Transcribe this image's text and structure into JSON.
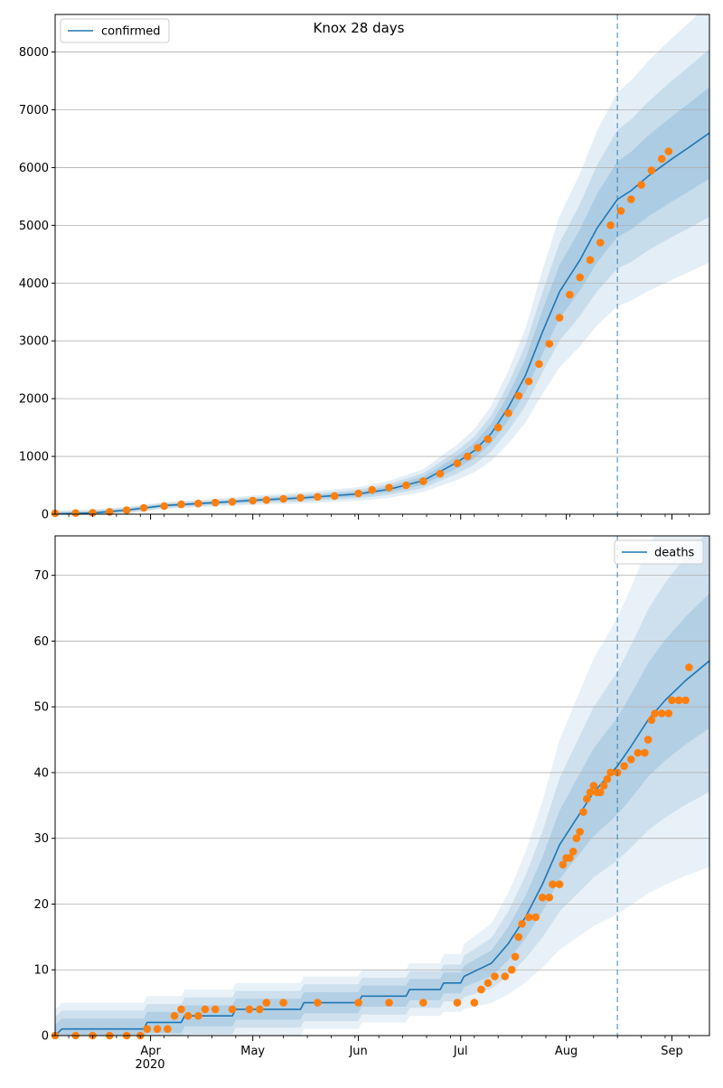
{
  "title": "Knox 28 days",
  "x_tick_labels": [
    "Apr",
    "May",
    "Jun",
    "Jul",
    "Aug",
    "Sep"
  ],
  "x_year_label": "2020",
  "colors": {
    "model": "#1f77b4",
    "observed": "#ff7f0e",
    "band": "#1f77b4",
    "grid": "#b0b0b0",
    "forecast_line": "#1f77b4"
  },
  "chart_data": [
    {
      "type": "line",
      "title": "Knox 28 days",
      "xlabel": "",
      "ylabel": "",
      "x_axis": "date",
      "xlim": [
        "2020-03-04",
        "2020-09-12"
      ],
      "ylim": [
        0,
        8650
      ],
      "yticks": [
        0,
        1000,
        2000,
        3000,
        4000,
        5000,
        6000,
        7000,
        8000
      ],
      "grid": "horizontal",
      "legend": {
        "entries": [
          "confirmed"
        ],
        "placement": "top-left"
      },
      "forecast_start": "2020-08-16",
      "series": [
        {
          "name": "confirmed",
          "kind": "model-median-line",
          "points": [
            [
              "2020-03-04",
              5
            ],
            [
              "2020-03-15",
              20
            ],
            [
              "2020-03-25",
              70
            ],
            [
              "2020-04-05",
              150
            ],
            [
              "2020-04-20",
              200
            ],
            [
              "2020-05-01",
              240
            ],
            [
              "2020-05-15",
              280
            ],
            [
              "2020-06-01",
              350
            ],
            [
              "2020-06-10",
              430
            ],
            [
              "2020-06-20",
              580
            ],
            [
              "2020-06-30",
              900
            ],
            [
              "2020-07-05",
              1100
            ],
            [
              "2020-07-10",
              1400
            ],
            [
              "2020-07-15",
              1850
            ],
            [
              "2020-07-20",
              2400
            ],
            [
              "2020-07-25",
              3150
            ],
            [
              "2020-07-30",
              3850
            ],
            [
              "2020-08-05",
              4400
            ],
            [
              "2020-08-10",
              4950
            ],
            [
              "2020-08-16",
              5450
            ],
            [
              "2020-08-20",
              5600
            ],
            [
              "2020-08-25",
              5850
            ],
            [
              "2020-09-01",
              6150
            ],
            [
              "2020-09-06",
              6350
            ],
            [
              "2020-09-12",
              6600
            ]
          ]
        },
        {
          "name": "",
          "kind": "observed-points",
          "points": [
            [
              "2020-03-04",
              15
            ],
            [
              "2020-03-10",
              20
            ],
            [
              "2020-03-15",
              25
            ],
            [
              "2020-03-20",
              40
            ],
            [
              "2020-03-25",
              70
            ],
            [
              "2020-03-30",
              110
            ],
            [
              "2020-04-05",
              140
            ],
            [
              "2020-04-10",
              170
            ],
            [
              "2020-04-15",
              185
            ],
            [
              "2020-04-20",
              200
            ],
            [
              "2020-04-25",
              215
            ],
            [
              "2020-05-01",
              235
            ],
            [
              "2020-05-05",
              245
            ],
            [
              "2020-05-10",
              265
            ],
            [
              "2020-05-15",
              285
            ],
            [
              "2020-05-20",
              300
            ],
            [
              "2020-05-25",
              315
            ],
            [
              "2020-06-01",
              360
            ],
            [
              "2020-06-05",
              420
            ],
            [
              "2020-06-10",
              460
            ],
            [
              "2020-06-15",
              500
            ],
            [
              "2020-06-20",
              570
            ],
            [
              "2020-06-25",
              700
            ],
            [
              "2020-06-30",
              880
            ],
            [
              "2020-07-03",
              1000
            ],
            [
              "2020-07-06",
              1150
            ],
            [
              "2020-07-09",
              1300
            ],
            [
              "2020-07-12",
              1500
            ],
            [
              "2020-07-15",
              1750
            ],
            [
              "2020-07-18",
              2050
            ],
            [
              "2020-07-21",
              2300
            ],
            [
              "2020-07-24",
              2600
            ],
            [
              "2020-07-27",
              2950
            ],
            [
              "2020-07-30",
              3400
            ],
            [
              "2020-08-02",
              3800
            ],
            [
              "2020-08-05",
              4100
            ],
            [
              "2020-08-08",
              4400
            ],
            [
              "2020-08-11",
              4700
            ],
            [
              "2020-08-14",
              5000
            ],
            [
              "2020-08-17",
              5250
            ],
            [
              "2020-08-20",
              5450
            ],
            [
              "2020-08-23",
              5700
            ],
            [
              "2020-08-26",
              5950
            ],
            [
              "2020-08-29",
              6150
            ],
            [
              "2020-08-31",
              6280
            ]
          ]
        }
      ]
    },
    {
      "type": "line",
      "title": "",
      "xlabel": "",
      "ylabel": "",
      "x_axis": "date",
      "xlim": [
        "2020-03-04",
        "2020-09-12"
      ],
      "ylim": [
        0,
        76
      ],
      "yticks": [
        0,
        10,
        20,
        30,
        40,
        50,
        60,
        70
      ],
      "grid": "horizontal",
      "legend": {
        "entries": [
          "deaths"
        ],
        "placement": "top-right"
      },
      "forecast_start": "2020-08-16",
      "series": [
        {
          "name": "deaths",
          "kind": "model-median-line",
          "points": [
            [
              "2020-03-04",
              0
            ],
            [
              "2020-03-06",
              1
            ],
            [
              "2020-03-30",
              1
            ],
            [
              "2020-03-31",
              2
            ],
            [
              "2020-04-10",
              2
            ],
            [
              "2020-04-11",
              3
            ],
            [
              "2020-04-25",
              3
            ],
            [
              "2020-04-26",
              4
            ],
            [
              "2020-05-15",
              4
            ],
            [
              "2020-05-16",
              5
            ],
            [
              "2020-06-01",
              5
            ],
            [
              "2020-06-02",
              6
            ],
            [
              "2020-06-15",
              6
            ],
            [
              "2020-06-16",
              7
            ],
            [
              "2020-06-25",
              7
            ],
            [
              "2020-06-26",
              8
            ],
            [
              "2020-07-01",
              8
            ],
            [
              "2020-07-02",
              9
            ],
            [
              "2020-07-06",
              10
            ],
            [
              "2020-07-10",
              11
            ],
            [
              "2020-07-15",
              14
            ],
            [
              "2020-07-20",
              18
            ],
            [
              "2020-07-25",
              23
            ],
            [
              "2020-07-30",
              29
            ],
            [
              "2020-08-04",
              33
            ],
            [
              "2020-08-09",
              37
            ],
            [
              "2020-08-16",
              41
            ],
            [
              "2020-08-20",
              44
            ],
            [
              "2020-08-25",
              48
            ],
            [
              "2020-08-30",
              51
            ],
            [
              "2020-09-05",
              54
            ],
            [
              "2020-09-12",
              57
            ]
          ]
        },
        {
          "name": "",
          "kind": "observed-points",
          "points": [
            [
              "2020-03-04",
              0
            ],
            [
              "2020-03-10",
              0
            ],
            [
              "2020-03-15",
              0
            ],
            [
              "2020-03-20",
              0
            ],
            [
              "2020-03-25",
              0
            ],
            [
              "2020-03-29",
              0
            ],
            [
              "2020-03-31",
              1
            ],
            [
              "2020-04-03",
              1
            ],
            [
              "2020-04-06",
              1
            ],
            [
              "2020-04-08",
              3
            ],
            [
              "2020-04-10",
              4
            ],
            [
              "2020-04-12",
              3
            ],
            [
              "2020-04-15",
              3
            ],
            [
              "2020-04-17",
              4
            ],
            [
              "2020-04-20",
              4
            ],
            [
              "2020-04-25",
              4
            ],
            [
              "2020-04-30",
              4
            ],
            [
              "2020-05-03",
              4
            ],
            [
              "2020-05-05",
              5
            ],
            [
              "2020-05-10",
              5
            ],
            [
              "2020-05-20",
              5
            ],
            [
              "2020-06-01",
              5
            ],
            [
              "2020-06-10",
              5
            ],
            [
              "2020-06-20",
              5
            ],
            [
              "2020-06-30",
              5
            ],
            [
              "2020-07-05",
              5
            ],
            [
              "2020-07-07",
              7
            ],
            [
              "2020-07-09",
              8
            ],
            [
              "2020-07-11",
              9
            ],
            [
              "2020-07-14",
              9
            ],
            [
              "2020-07-16",
              10
            ],
            [
              "2020-07-17",
              12
            ],
            [
              "2020-07-18",
              15
            ],
            [
              "2020-07-19",
              17
            ],
            [
              "2020-07-21",
              18
            ],
            [
              "2020-07-23",
              18
            ],
            [
              "2020-07-25",
              21
            ],
            [
              "2020-07-27",
              21
            ],
            [
              "2020-07-28",
              23
            ],
            [
              "2020-07-30",
              23
            ],
            [
              "2020-07-31",
              26
            ],
            [
              "2020-08-01",
              27
            ],
            [
              "2020-08-02",
              27
            ],
            [
              "2020-08-03",
              28
            ],
            [
              "2020-08-04",
              30
            ],
            [
              "2020-08-05",
              31
            ],
            [
              "2020-08-06",
              34
            ],
            [
              "2020-08-07",
              36
            ],
            [
              "2020-08-08",
              37
            ],
            [
              "2020-08-09",
              38
            ],
            [
              "2020-08-10",
              37
            ],
            [
              "2020-08-11",
              37
            ],
            [
              "2020-08-12",
              38
            ],
            [
              "2020-08-13",
              39
            ],
            [
              "2020-08-14",
              40
            ],
            [
              "2020-08-16",
              40
            ],
            [
              "2020-08-18",
              41
            ],
            [
              "2020-08-20",
              42
            ],
            [
              "2020-08-22",
              43
            ],
            [
              "2020-08-24",
              43
            ],
            [
              "2020-08-25",
              45
            ],
            [
              "2020-08-26",
              48
            ],
            [
              "2020-08-27",
              49
            ],
            [
              "2020-08-29",
              49
            ],
            [
              "2020-08-31",
              49
            ],
            [
              "2020-09-01",
              51
            ],
            [
              "2020-09-03",
              51
            ],
            [
              "2020-09-05",
              51
            ],
            [
              "2020-09-06",
              56
            ]
          ]
        }
      ]
    }
  ]
}
